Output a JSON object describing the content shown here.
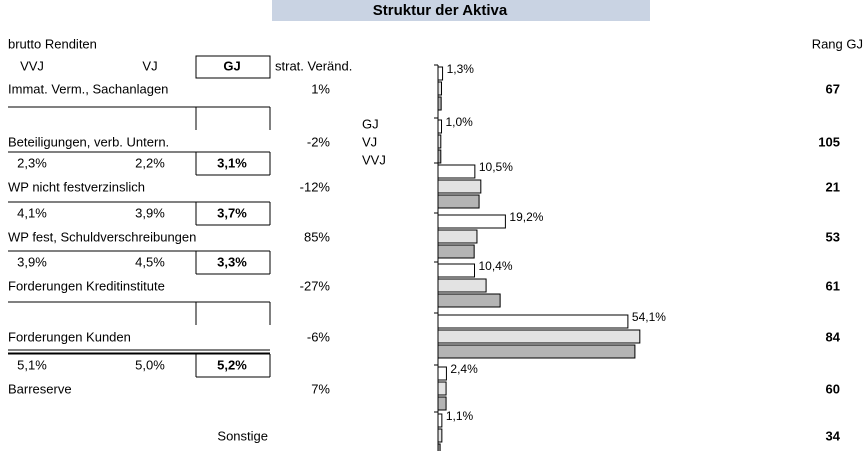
{
  "header": {
    "title": "Struktur der Aktiva",
    "subtitle": "brutto Renditen",
    "rank_header": "Rang GJ",
    "columns": [
      "VVJ",
      "VJ",
      "GJ",
      "strat. Veränd."
    ]
  },
  "series": [
    {
      "name": "GJ",
      "color": "#ffffff"
    },
    {
      "name": "VJ",
      "color": "#e3e3e3"
    },
    {
      "name": "VVJ",
      "color": "#b4b4b4"
    }
  ],
  "rows": [
    {
      "label": "Immat. Verm., Sachanlagen",
      "returns": null,
      "strat": "1%",
      "rank": 67,
      "bars": [
        1.3,
        1.0,
        0.9
      ],
      "bar_label": "1,3%"
    },
    {
      "label": "Beteiligungen, verb. Untern.",
      "returns": null,
      "strat": "-2%",
      "rank": 105,
      "bars": [
        1.0,
        0.8,
        0.8
      ],
      "bar_label": "1,0%"
    },
    {
      "label": "WP nicht festverzinslich",
      "returns": [
        "2,3%",
        "2,2%",
        "3,1%"
      ],
      "strat": "-12%",
      "rank": 21,
      "bars": [
        10.5,
        12.2,
        11.7
      ],
      "bar_label": "10,5%"
    },
    {
      "label": "WP fest, Schuldverschreibungen",
      "returns": [
        "4,1%",
        "3,9%",
        "3,7%"
      ],
      "strat": "85%",
      "rank": 53,
      "bars": [
        19.2,
        11.1,
        10.3
      ],
      "bar_label": "19,2%"
    },
    {
      "label": "Forderungen Kreditinstitute",
      "returns": [
        "3,9%",
        "4,5%",
        "3,3%"
      ],
      "strat": "-27%",
      "rank": 61,
      "bars": [
        10.4,
        13.7,
        17.7
      ],
      "bar_label": "10,4%"
    },
    {
      "label": "Forderungen Kunden",
      "returns": null,
      "strat": "-6%",
      "rank": 84,
      "bars": [
        54.1,
        57.5,
        56.1
      ],
      "bar_label": "54,1%"
    },
    {
      "label": "Barreserve",
      "returns": [
        "5,1%",
        "5,0%",
        "5,2%"
      ],
      "strat": "7%",
      "rank": 60,
      "bars": [
        2.4,
        2.3,
        2.3
      ],
      "bar_label": "2,4%"
    },
    {
      "label": "Sonstige",
      "returns": null,
      "strat": null,
      "rank": 34,
      "bars": [
        1.1,
        1.1,
        0.6
      ],
      "bar_label": "1,1%"
    }
  ]
}
